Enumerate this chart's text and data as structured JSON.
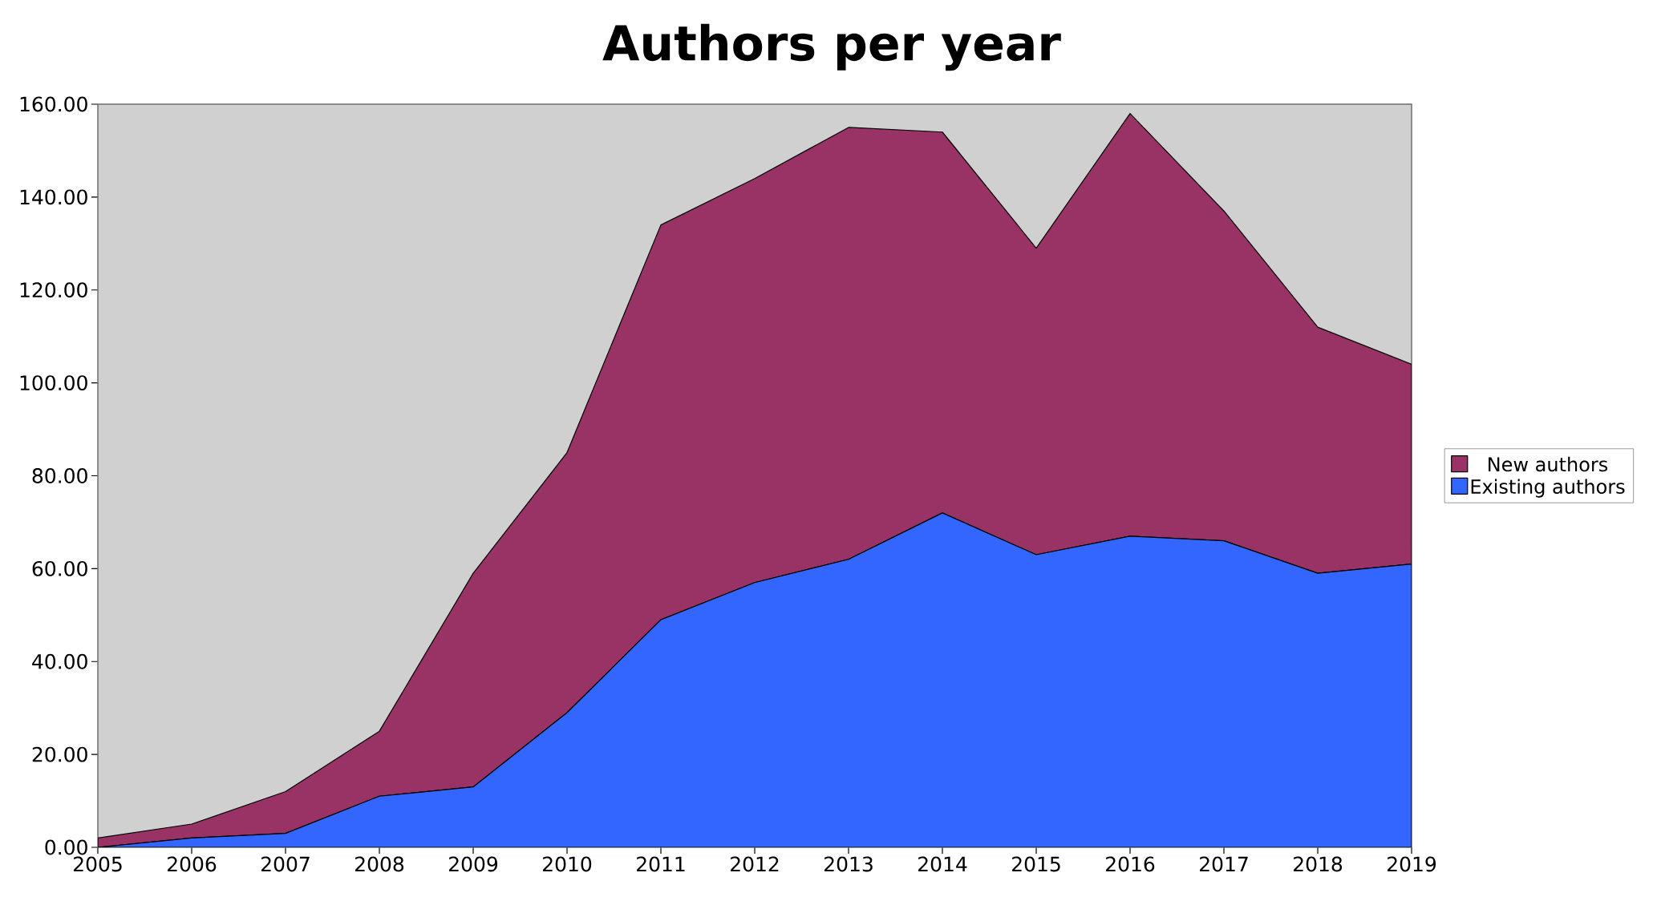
{
  "chart_data": {
    "type": "area",
    "title": "Authors per year",
    "stacked": true,
    "legend": "right",
    "grid": false,
    "x": [
      2005,
      2006,
      2007,
      2008,
      2009,
      2010,
      2011,
      2012,
      2013,
      2014,
      2015,
      2016,
      2017,
      2018,
      2019
    ],
    "xlim": [
      2005,
      2019
    ],
    "xticks": [
      2005,
      2006,
      2007,
      2008,
      2009,
      2010,
      2011,
      2012,
      2013,
      2014,
      2015,
      2016,
      2017,
      2018,
      2019
    ],
    "ylim": [
      0,
      160
    ],
    "yticks": [
      {
        "value": 0,
        "label": "0.00"
      },
      {
        "value": 20,
        "label": "20.00"
      },
      {
        "value": 40,
        "label": "40.00"
      },
      {
        "value": 60,
        "label": "60.00"
      },
      {
        "value": 80,
        "label": "80.00"
      },
      {
        "value": 100,
        "label": "100.00"
      },
      {
        "value": 120,
        "label": "120.00"
      },
      {
        "value": 140,
        "label": "140.00"
      },
      {
        "value": 160,
        "label": "160.00"
      }
    ],
    "series": [
      {
        "name": "Existing authors",
        "color": "#3366ff",
        "values": [
          0,
          2,
          3,
          11,
          13,
          29,
          49,
          57,
          62,
          72,
          63,
          67,
          66,
          59,
          61
        ]
      },
      {
        "name": "New authors",
        "color": "#993366",
        "values": [
          2,
          3,
          9,
          14,
          46,
          56,
          85,
          87,
          93,
          82,
          66,
          91,
          71,
          53,
          43
        ]
      }
    ]
  }
}
